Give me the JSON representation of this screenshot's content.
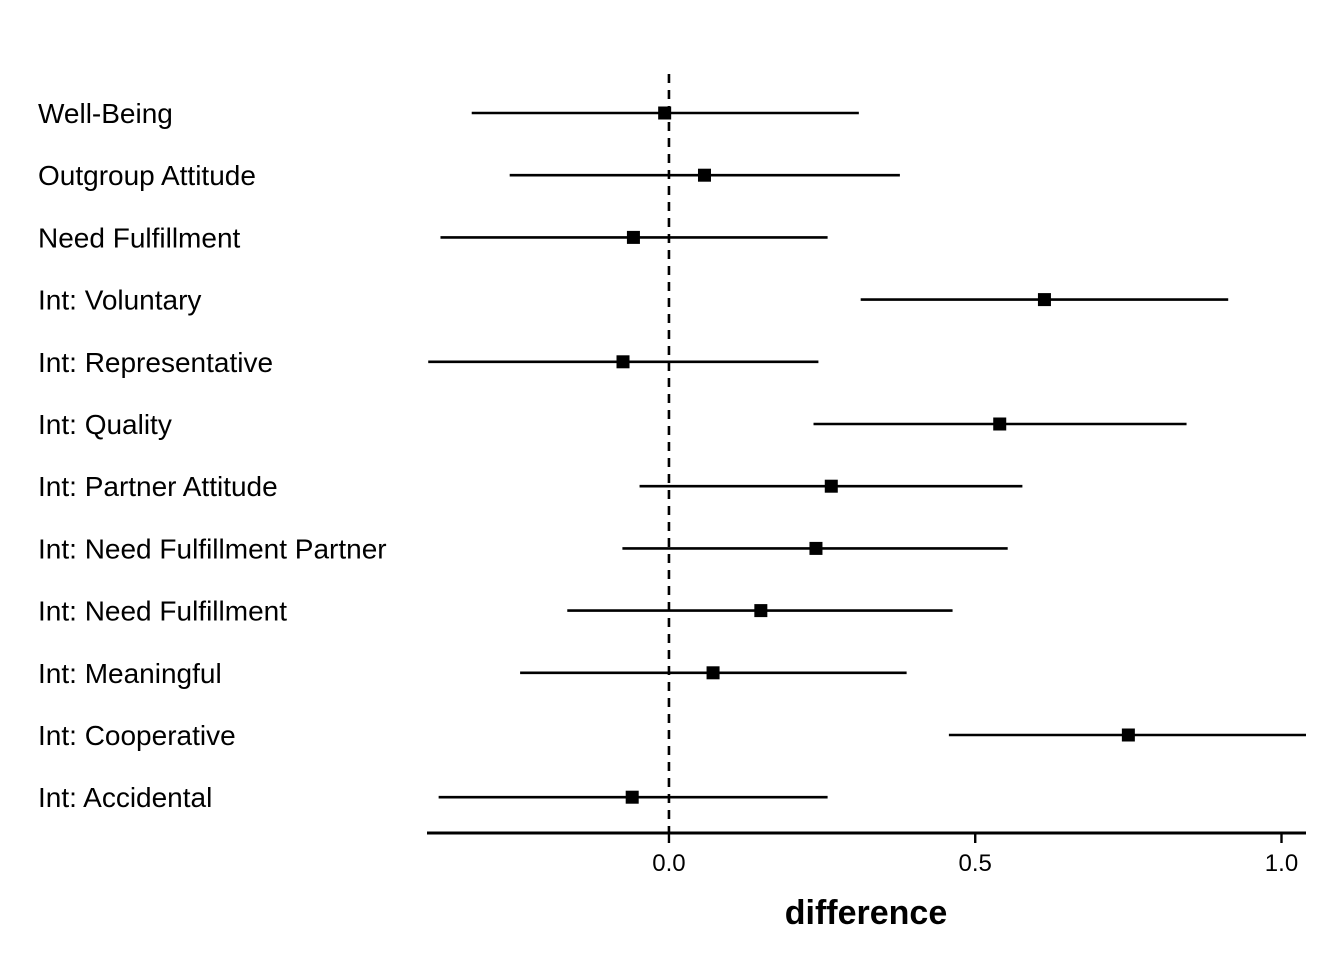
{
  "chart_data": {
    "type": "forest",
    "xlabel": "difference",
    "ylabel": "",
    "xlim": [
      -0.395,
      1.04
    ],
    "x_ticks": [
      0.0,
      0.5,
      1.0
    ],
    "x_tick_labels": [
      "0.0",
      "0.5",
      "1.0"
    ],
    "reference_line": 0.0,
    "grid": false,
    "marker_color": "#000000",
    "categories": [
      "Well-Being",
      "Outgroup Attitude",
      "Need Fulfillment",
      "Int: Voluntary",
      "Int: Representative",
      "Int: Quality",
      "Int: Partner Attitude",
      "Int: Need Fulfillment Partner",
      "Int: Need Fulfillment",
      "Int: Meaningful",
      "Int: Cooperative",
      "Int: Accidental"
    ],
    "estimates": [
      -0.007,
      0.058,
      -0.058,
      0.613,
      -0.075,
      0.54,
      0.265,
      0.24,
      0.15,
      0.072,
      0.75,
      -0.06
    ],
    "lower": [
      -0.322,
      -0.26,
      -0.373,
      0.313,
      -0.393,
      0.236,
      -0.048,
      -0.076,
      -0.166,
      -0.243,
      0.457,
      -0.376
    ],
    "upper": [
      0.31,
      0.377,
      0.259,
      0.913,
      0.244,
      0.845,
      0.577,
      0.553,
      0.463,
      0.388,
      1.04,
      0.259
    ]
  }
}
